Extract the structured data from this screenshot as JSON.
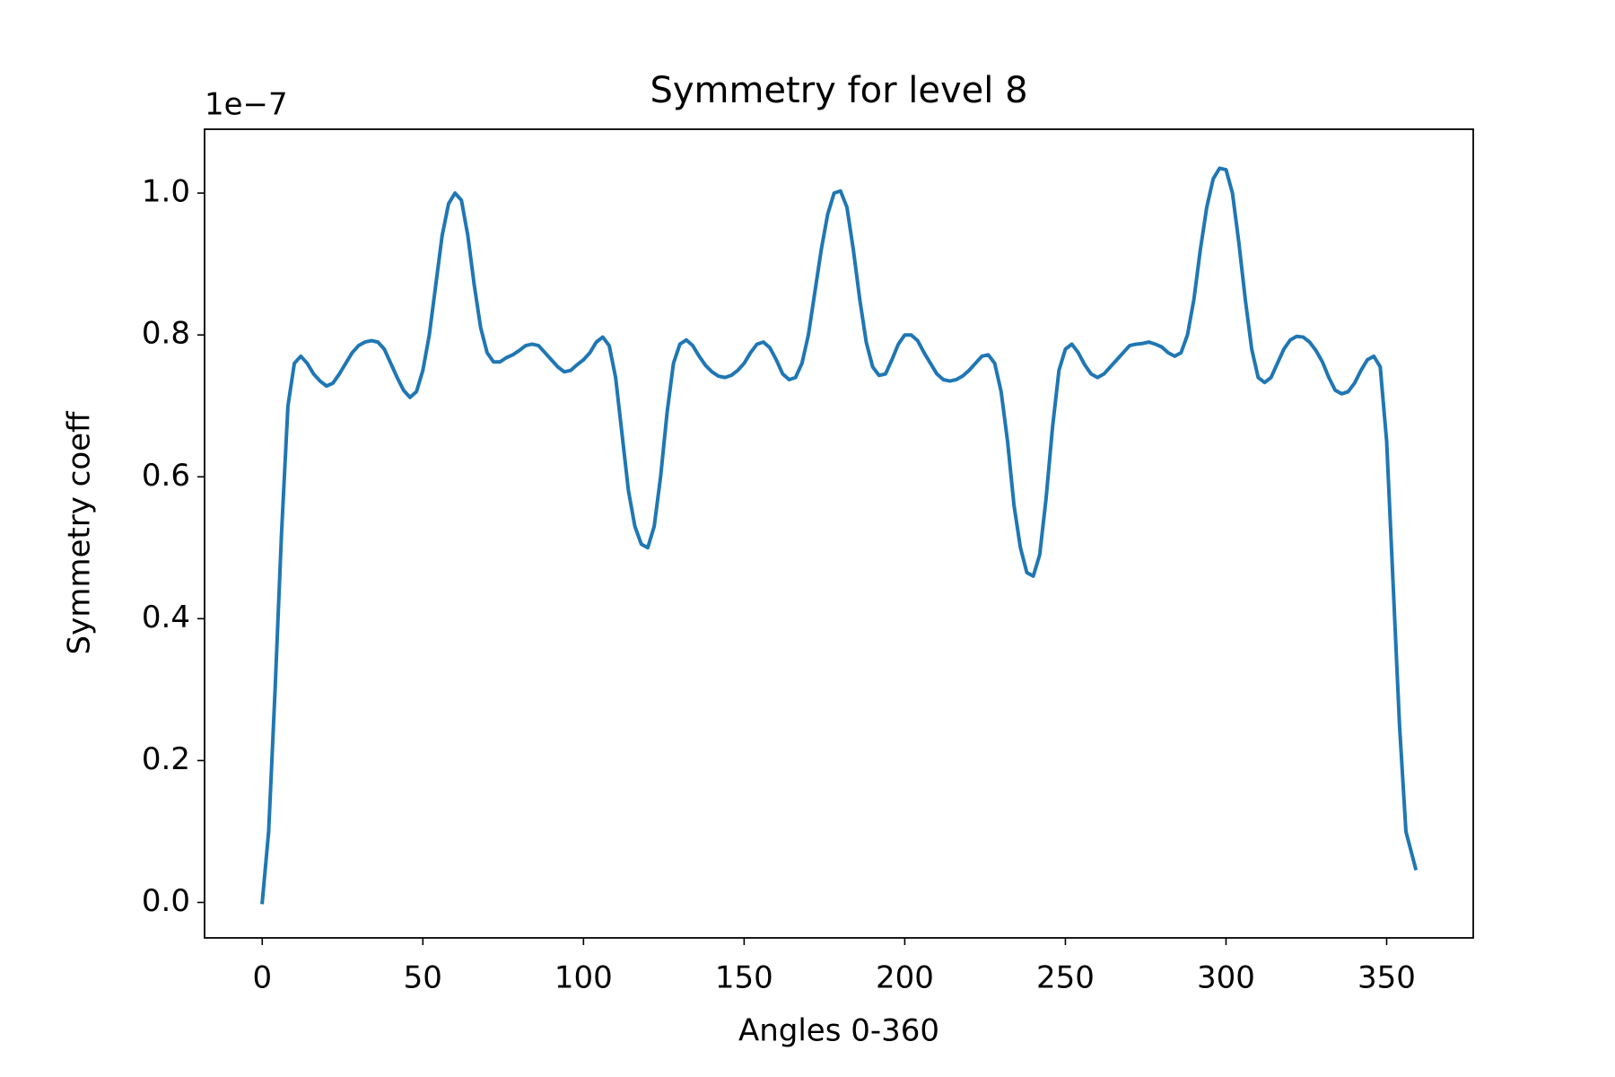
{
  "chart_data": {
    "type": "line",
    "title": "Symmetry for level 8",
    "x_label": "Angles 0-360",
    "y_label": "Symmetry coeff",
    "y_offset_label": "1e−7",
    "color": "#1f77b4",
    "x": [
      0,
      2,
      4,
      6,
      8,
      10,
      12,
      14,
      16,
      18,
      20,
      22,
      24,
      26,
      28,
      30,
      32,
      34,
      36,
      38,
      40,
      42,
      44,
      46,
      48,
      50,
      52,
      54,
      56,
      58,
      60,
      62,
      64,
      66,
      68,
      70,
      72,
      74,
      76,
      78,
      80,
      82,
      84,
      86,
      88,
      90,
      92,
      94,
      96,
      98,
      100,
      102,
      104,
      106,
      108,
      110,
      112,
      114,
      116,
      118,
      120,
      122,
      124,
      126,
      128,
      130,
      132,
      134,
      136,
      138,
      140,
      142,
      144,
      146,
      148,
      150,
      152,
      154,
      156,
      158,
      160,
      162,
      164,
      166,
      168,
      170,
      172,
      174,
      176,
      178,
      180,
      182,
      184,
      186,
      188,
      190,
      192,
      194,
      196,
      198,
      200,
      202,
      204,
      206,
      208,
      210,
      212,
      214,
      216,
      218,
      220,
      222,
      224,
      226,
      228,
      230,
      232,
      234,
      236,
      238,
      240,
      242,
      244,
      246,
      248,
      250,
      252,
      254,
      256,
      258,
      260,
      262,
      264,
      266,
      268,
      270,
      272,
      274,
      276,
      278,
      280,
      282,
      284,
      286,
      288,
      290,
      292,
      294,
      296,
      298,
      300,
      302,
      304,
      306,
      308,
      310,
      312,
      314,
      316,
      318,
      320,
      322,
      324,
      326,
      328,
      330,
      332,
      334,
      336,
      338,
      340,
      342,
      344,
      346,
      348,
      350,
      352,
      354,
      356,
      359
    ],
    "values": [
      0,
      0.1,
      0.3,
      0.52,
      0.7,
      0.76,
      0.77,
      0.76,
      0.745,
      0.735,
      0.728,
      0.732,
      0.745,
      0.76,
      0.775,
      0.785,
      0.79,
      0.792,
      0.79,
      0.78,
      0.76,
      0.74,
      0.722,
      0.712,
      0.72,
      0.75,
      0.8,
      0.87,
      0.94,
      0.985,
      1.0,
      0.99,
      0.94,
      0.87,
      0.81,
      0.775,
      0.762,
      0.762,
      0.768,
      0.772,
      0.778,
      0.785,
      0.787,
      0.785,
      0.775,
      0.765,
      0.755,
      0.748,
      0.75,
      0.758,
      0.765,
      0.775,
      0.79,
      0.797,
      0.785,
      0.74,
      0.66,
      0.58,
      0.53,
      0.505,
      0.5,
      0.53,
      0.6,
      0.69,
      0.76,
      0.787,
      0.793,
      0.785,
      0.77,
      0.757,
      0.748,
      0.742,
      0.74,
      0.743,
      0.75,
      0.76,
      0.775,
      0.787,
      0.79,
      0.782,
      0.765,
      0.745,
      0.737,
      0.74,
      0.76,
      0.8,
      0.86,
      0.92,
      0.97,
      1.0,
      1.003,
      0.98,
      0.92,
      0.85,
      0.79,
      0.755,
      0.743,
      0.745,
      0.765,
      0.787,
      0.8,
      0.8,
      0.792,
      0.775,
      0.76,
      0.745,
      0.737,
      0.735,
      0.737,
      0.742,
      0.75,
      0.76,
      0.77,
      0.772,
      0.76,
      0.72,
      0.65,
      0.56,
      0.5,
      0.465,
      0.46,
      0.49,
      0.57,
      0.67,
      0.75,
      0.78,
      0.787,
      0.775,
      0.758,
      0.745,
      0.74,
      0.745,
      0.755,
      0.765,
      0.775,
      0.785,
      0.787,
      0.788,
      0.79,
      0.787,
      0.783,
      0.775,
      0.77,
      0.775,
      0.8,
      0.85,
      0.92,
      0.98,
      1.02,
      1.035,
      1.033,
      1.0,
      0.93,
      0.85,
      0.78,
      0.74,
      0.733,
      0.74,
      0.76,
      0.78,
      0.793,
      0.798,
      0.797,
      0.79,
      0.778,
      0.762,
      0.74,
      0.722,
      0.717,
      0.72,
      0.732,
      0.75,
      0.765,
      0.77,
      0.755,
      0.65,
      0.45,
      0.25,
      0.1,
      0.048
    ],
    "xlim": [
      -17.95,
      376.95
    ],
    "ylim": [
      -0.05,
      1.09
    ],
    "xticks": [
      0,
      50,
      100,
      150,
      200,
      250,
      300,
      350
    ],
    "yticks": [
      {
        "value": 0,
        "label": "0.0"
      },
      0.2,
      0.4,
      0.6,
      0.8,
      {
        "value": 1,
        "label": "1.0"
      }
    ],
    "grid": false
  }
}
